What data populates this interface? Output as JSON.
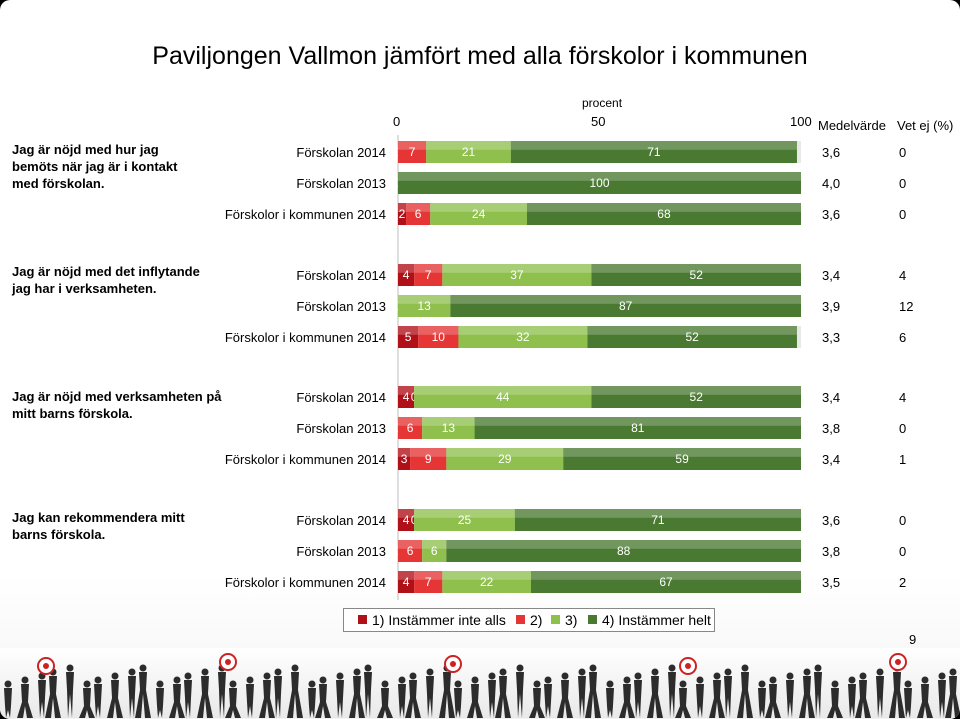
{
  "title": "Paviljongen Vallmon jämfört med alla förskolor i kommunen",
  "axis": {
    "label": "procent",
    "ticks": [
      "0",
      "50",
      "100"
    ]
  },
  "headers": {
    "mean": "Medelvärde",
    "dontknow": "Vet ej (%)"
  },
  "colors": {
    "c1": "#b01018",
    "c2": "#e53535",
    "c3": "#8fc04e",
    "c4": "#4a7a32",
    "bg_bar": "#e8e8e8"
  },
  "legend": [
    "1) Instämmer inte alls",
    "2)",
    "3)",
    "4) Instämmer helt"
  ],
  "page_number": "9",
  "chart_data": {
    "type": "bar",
    "stacked": true,
    "orientation": "horizontal",
    "xlabel": "procent",
    "xlim": [
      0,
      100
    ],
    "series_names": [
      "1) Instämmer inte alls",
      "2)",
      "3)",
      "4) Instämmer helt"
    ],
    "groups": [
      {
        "question": "Jag är nöjd med hur jag bemöts när jag är i kontakt med förskolan.",
        "rows": [
          {
            "label": "Förskolan 2014",
            "values": [
              0,
              7,
              21,
              71
            ],
            "mean": "3,6",
            "dontknow": "0"
          },
          {
            "label": "Förskolan 2013",
            "values": [
              0,
              0,
              0,
              100
            ],
            "labels": [
              "0",
              "",
              "",
              "100"
            ],
            "mean": "4,0",
            "dontknow": "0"
          },
          {
            "label": "Förskolor i kommunen 2014",
            "values": [
              2,
              6,
              24,
              68
            ],
            "mean": "3,6",
            "dontknow": "0"
          }
        ]
      },
      {
        "question": "Jag är nöjd med det inflytande jag har i verksamheten.",
        "rows": [
          {
            "label": "Förskolan 2014",
            "values": [
              4,
              7,
              37,
              52
            ],
            "mean": "3,4",
            "dontknow": "4"
          },
          {
            "label": "Förskolan 2013",
            "values": [
              0,
              0,
              13,
              87
            ],
            "labels": [
              "0",
              "",
              "13",
              "87"
            ],
            "mean": "3,9",
            "dontknow": "12"
          },
          {
            "label": "Förskolor i kommunen 2014",
            "values": [
              5,
              10,
              32,
              52
            ],
            "mean": "3,3",
            "dontknow": "6"
          }
        ]
      },
      {
        "question": "Jag är nöjd med verksamheten på mitt barns förskola.",
        "rows": [
          {
            "label": "Förskolan 2014",
            "values": [
              4,
              0,
              44,
              52
            ],
            "mean": "3,4",
            "dontknow": "4"
          },
          {
            "label": "Förskolan 2013",
            "values": [
              0,
              6,
              13,
              81
            ],
            "mean": "3,8",
            "dontknow": "0"
          },
          {
            "label": "Förskolor i kommunen 2014",
            "values": [
              3,
              9,
              29,
              59
            ],
            "mean": "3,4",
            "dontknow": "1"
          }
        ]
      },
      {
        "question": "Jag kan rekommendera mitt barns förskola.",
        "rows": [
          {
            "label": "Förskolan 2014",
            "values": [
              4,
              0,
              25,
              71
            ],
            "mean": "3,6",
            "dontknow": "0"
          },
          {
            "label": "Förskolan 2013",
            "values": [
              0,
              6,
              6,
              88
            ],
            "mean": "3,8",
            "dontknow": "0"
          },
          {
            "label": "Förskolor i kommunen 2014",
            "values": [
              4,
              7,
              22,
              67
            ],
            "mean": "3,5",
            "dontknow": "2"
          }
        ]
      }
    ]
  }
}
